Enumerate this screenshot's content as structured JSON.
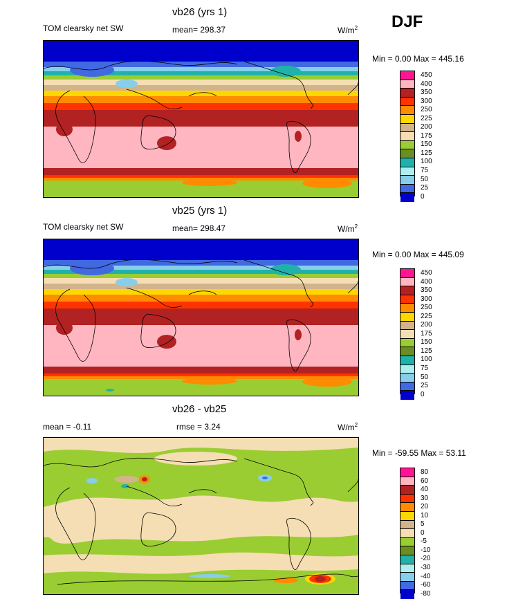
{
  "season": "DJF",
  "panels": [
    {
      "id": "top",
      "title": "vb26 (yrs 1)",
      "left_label": "TOM clearsky net SW",
      "center_label": "mean= 298.37",
      "units_base": "W/m",
      "units_exp": "2",
      "minmax": "Min =   0.00 Max = 445.16",
      "colors": [
        "#ff1493",
        "#ffb6c1",
        "#b22222",
        "#ff3300",
        "#ff8c00",
        "#ffd700",
        "#d2b48c",
        "#f5deb3",
        "#9acd32",
        "#6b8e23",
        "#20b2aa",
        "#afeeee",
        "#87ceeb",
        "#4169e1",
        "#0000cd",
        "#9370db"
      ],
      "levels": [
        "450",
        "400",
        "350",
        "300",
        "250",
        "225",
        "200",
        "175",
        "150",
        "125",
        "100",
        "75",
        "50",
        "25",
        "0"
      ]
    },
    {
      "id": "middle",
      "title": "vb25 (yrs 1)",
      "left_label": "TOM clearsky net SW",
      "center_label": "mean= 298.47",
      "units_base": "W/m",
      "units_exp": "2",
      "minmax": "Min =   0.00 Max = 445.09",
      "colors": [
        "#ff1493",
        "#ffb6c1",
        "#b22222",
        "#ff3300",
        "#ff8c00",
        "#ffd700",
        "#d2b48c",
        "#f5deb3",
        "#9acd32",
        "#6b8e23",
        "#20b2aa",
        "#afeeee",
        "#87ceeb",
        "#4169e1",
        "#0000cd",
        "#9370db"
      ],
      "levels": [
        "450",
        "400",
        "350",
        "300",
        "250",
        "225",
        "200",
        "175",
        "150",
        "125",
        "100",
        "75",
        "50",
        "25",
        "0"
      ]
    },
    {
      "id": "bottom",
      "title": "vb26 - vb25",
      "left_label": "mean =  -0.11",
      "center_label": "rmse =   3.24",
      "units_base": "W/m",
      "units_exp": "2",
      "minmax": "Min = -59.55 Max =  53.11",
      "colors": [
        "#ff1493",
        "#ffb6c1",
        "#b22222",
        "#ff3300",
        "#ff8c00",
        "#ffd700",
        "#d2b48c",
        "#f5deb3",
        "#9acd32",
        "#6b8e23",
        "#20b2aa",
        "#afeeee",
        "#87ceeb",
        "#4169e1",
        "#0000cd",
        "#9370db"
      ],
      "levels": [
        "80",
        "60",
        "40",
        "30",
        "20",
        "10",
        "5",
        "0",
        "-5",
        "-10",
        "-20",
        "-30",
        "-40",
        "-60",
        "-80"
      ]
    }
  ]
}
